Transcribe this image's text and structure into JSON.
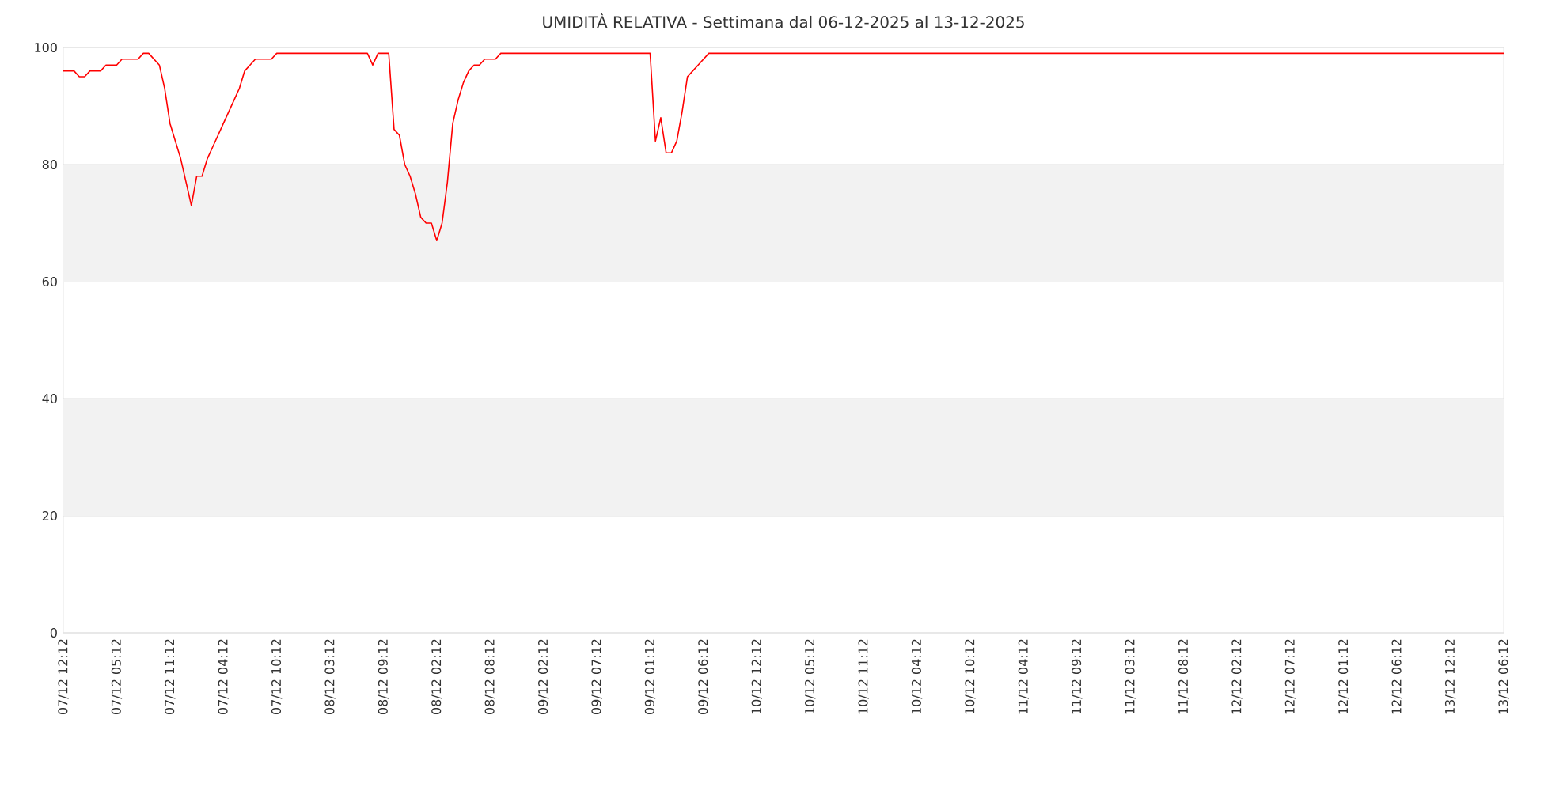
{
  "chart_data": {
    "type": "line",
    "title": "UMIDITÀ RELATIVA - Settimana dal 06-12-2025 al 13-12-2025",
    "categories": [
      "07/12 12:12",
      null,
      null,
      null,
      null,
      null,
      null,
      null,
      null,
      null,
      "07/12 05:12",
      null,
      null,
      null,
      null,
      null,
      null,
      null,
      null,
      null,
      "07/12 11:12",
      null,
      null,
      null,
      null,
      null,
      null,
      null,
      null,
      null,
      "07/12 04:12",
      null,
      null,
      null,
      null,
      null,
      null,
      null,
      null,
      null,
      "07/12 10:12",
      null,
      null,
      null,
      null,
      null,
      null,
      null,
      null,
      null,
      "08/12 03:12",
      null,
      null,
      null,
      null,
      null,
      null,
      null,
      null,
      null,
      "08/12 09:12",
      null,
      null,
      null,
      null,
      null,
      null,
      null,
      null,
      null,
      "08/12 02:12",
      null,
      null,
      null,
      null,
      null,
      null,
      null,
      null,
      null,
      "08/12 08:12",
      null,
      null,
      null,
      null,
      null,
      null,
      null,
      null,
      null,
      "09/12 02:12",
      null,
      null,
      null,
      null,
      null,
      null,
      null,
      null,
      null,
      "09/12 07:12",
      null,
      null,
      null,
      null,
      null,
      null,
      null,
      null,
      null,
      "09/12 01:12",
      null,
      null,
      null,
      null,
      null,
      null,
      null,
      null,
      null,
      "09/12 06:12",
      null,
      null,
      null,
      null,
      null,
      null,
      null,
      null,
      null,
      "10/12 12:12",
      null,
      null,
      null,
      null,
      null,
      null,
      null,
      null,
      null,
      "10/12 05:12",
      null,
      null,
      null,
      null,
      null,
      null,
      null,
      null,
      null,
      "10/12 11:12",
      null,
      null,
      null,
      null,
      null,
      null,
      null,
      null,
      null,
      "10/12 04:12",
      null,
      null,
      null,
      null,
      null,
      null,
      null,
      null,
      null,
      "10/12 10:12",
      null,
      null,
      null,
      null,
      null,
      null,
      null,
      null,
      null,
      "11/12 04:12",
      null,
      null,
      null,
      null,
      null,
      null,
      null,
      null,
      null,
      "11/12 09:12",
      null,
      null,
      null,
      null,
      null,
      null,
      null,
      null,
      null,
      "11/12 03:12",
      null,
      null,
      null,
      null,
      null,
      null,
      null,
      null,
      null,
      "11/12 08:12",
      null,
      null,
      null,
      null,
      null,
      null,
      null,
      null,
      null,
      "12/12 02:12",
      null,
      null,
      null,
      null,
      null,
      null,
      null,
      null,
      null,
      "12/12 07:12",
      null,
      null,
      null,
      null,
      null,
      null,
      null,
      null,
      null,
      "12/12 01:12",
      null,
      null,
      null,
      null,
      null,
      null,
      null,
      null,
      null,
      "12/12 06:12",
      null,
      null,
      null,
      null,
      null,
      null,
      null,
      null,
      null,
      "13/12 12:12",
      null,
      null,
      null,
      null,
      null,
      null,
      null,
      null,
      null,
      "13/12 06:12"
    ],
    "ylim": [
      0,
      100
    ],
    "yticks": [
      0,
      20,
      40,
      60,
      80,
      100
    ],
    "grid": "y",
    "bands": [
      {
        "axis": "y",
        "from": 20,
        "to": 40,
        "color": "#f2f2f2"
      },
      {
        "axis": "y",
        "from": 60,
        "to": 80,
        "color": "#f2f2f2"
      }
    ],
    "series": [
      {
        "color": "#ff0000",
        "values": [
          96,
          96,
          96,
          95,
          95,
          96,
          96,
          96,
          97,
          97,
          97,
          98,
          98,
          98,
          98,
          99,
          99,
          98,
          97,
          93,
          87,
          84,
          81,
          77,
          73,
          78,
          78,
          81,
          83,
          85,
          87,
          89,
          91,
          93,
          96,
          97,
          98,
          98,
          98,
          98,
          99,
          99,
          99,
          99,
          99,
          99,
          99,
          99,
          99,
          99,
          99,
          99,
          99,
          99,
          99,
          99,
          99,
          99,
          97,
          99,
          99,
          99,
          86,
          85,
          80,
          78,
          75,
          71,
          70,
          70,
          67,
          70,
          77,
          87,
          91,
          94,
          96,
          97,
          97,
          98,
          98,
          98,
          99,
          99,
          99,
          99,
          99,
          99,
          99,
          99,
          99,
          99,
          99,
          99,
          99,
          99,
          99,
          99,
          99,
          99,
          99,
          99,
          99,
          99,
          99,
          99,
          99,
          99,
          99,
          99,
          99,
          84,
          88,
          82,
          82,
          84,
          89,
          95,
          96,
          97,
          98,
          99,
          99,
          99,
          99,
          99,
          99,
          99,
          99,
          99,
          99,
          99,
          99,
          99,
          99,
          99,
          99,
          99,
          99,
          99,
          99,
          99,
          99,
          99,
          99,
          99,
          99,
          99,
          99,
          99,
          99,
          99,
          99,
          99,
          99,
          99,
          99,
          99,
          99,
          99,
          99,
          99,
          99,
          99,
          99,
          99,
          99,
          99,
          99,
          99,
          99,
          99,
          99,
          99,
          99,
          99,
          99,
          99,
          99,
          99,
          99,
          99,
          99,
          99,
          99,
          99,
          99,
          99,
          99,
          99,
          99,
          99,
          99,
          99,
          99,
          99,
          99,
          99,
          99,
          99,
          99,
          99,
          99,
          99,
          99,
          99,
          99,
          99,
          99,
          99,
          99,
          99,
          99,
          99,
          99,
          99,
          99,
          99,
          99,
          99,
          99,
          99,
          99,
          99,
          99,
          99,
          99,
          99,
          99,
          99,
          99,
          99,
          99,
          99,
          99,
          99,
          99,
          99,
          99,
          99,
          99,
          99,
          99,
          99,
          99,
          99,
          99,
          99,
          99,
          99,
          99,
          99,
          99,
          99,
          99,
          99,
          99,
          99,
          99,
          99,
          99,
          99,
          99,
          99,
          99,
          99,
          99,
          99,
          99,
          99,
          99
        ]
      }
    ]
  }
}
